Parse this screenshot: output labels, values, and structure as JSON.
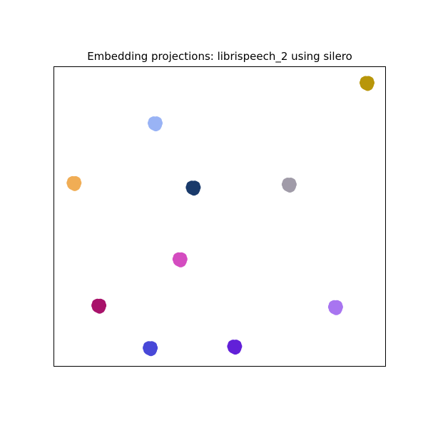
{
  "chart_data": {
    "type": "scatter",
    "title": "Embedding projections: librispeech_2 using silero",
    "xlabel": "",
    "ylabel": "",
    "xlim": [
      0,
      1
    ],
    "ylim": [
      0,
      1
    ],
    "grid": false,
    "axis_ticks": false,
    "legend": "none",
    "series": [
      {
        "color": "#b8960a",
        "x": [
          0.945
        ],
        "y": [
          0.945
        ]
      },
      {
        "color": "#99b3f5",
        "x": [
          0.305
        ],
        "y": [
          0.81
        ]
      },
      {
        "color": "#f0ad55",
        "x": [
          0.06
        ],
        "y": [
          0.61
        ]
      },
      {
        "color": "#1a3a6b",
        "x": [
          0.42
        ],
        "y": [
          0.595
        ]
      },
      {
        "color": "#a09ba8",
        "x": [
          0.71
        ],
        "y": [
          0.605
        ]
      },
      {
        "color": "#d44cc0",
        "x": [
          0.38
        ],
        "y": [
          0.355
        ]
      },
      {
        "color": "#a8126a",
        "x": [
          0.135
        ],
        "y": [
          0.2
        ]
      },
      {
        "color": "#a875f0",
        "x": [
          0.85
        ],
        "y": [
          0.195
        ]
      },
      {
        "color": "#4848d8",
        "x": [
          0.29
        ],
        "y": [
          0.058
        ]
      },
      {
        "color": "#6220d8",
        "x": [
          0.545
        ],
        "y": [
          0.063
        ]
      }
    ]
  }
}
